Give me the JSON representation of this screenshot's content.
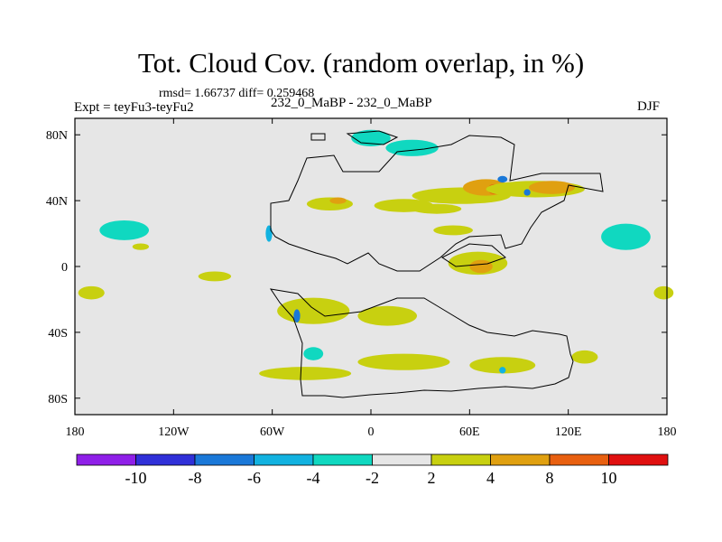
{
  "header": {
    "title": "Tot. Cloud Cov. (random overlap, in %)",
    "stats": "rmsd= 1.66737  diff= 0.259468",
    "experiment": "Expt = teyFu3-teyFu2",
    "period": "232_0_MaBP - 232_0_MaBP",
    "season": "DJF"
  },
  "chart_data": {
    "type": "heatmap",
    "title": "Tot. Cloud Cov. (random overlap, in %)",
    "subtitle": "232_0_MaBP - 232_0_MaBP",
    "units": "%",
    "x_range": [
      -180,
      180
    ],
    "y_range": [
      -90,
      90
    ],
    "x_ticks": [
      {
        "value": -180,
        "label": "180"
      },
      {
        "value": -120,
        "label": "120W"
      },
      {
        "value": -60,
        "label": "60W"
      },
      {
        "value": 0,
        "label": "0"
      },
      {
        "value": 60,
        "label": "60E"
      },
      {
        "value": 120,
        "label": "120E"
      },
      {
        "value": 180,
        "label": "180"
      }
    ],
    "y_ticks": [
      {
        "value": 80,
        "label": "80N"
      },
      {
        "value": 40,
        "label": "40N"
      },
      {
        "value": 0,
        "label": "0"
      },
      {
        "value": -40,
        "label": "40S"
      },
      {
        "value": -80,
        "label": "80S"
      }
    ],
    "colorbar": {
      "colors": [
        "#8f1fe8",
        "#3030d8",
        "#1a78d8",
        "#12b2e0",
        "#10d8c0",
        "#e6e6e6",
        "#c8d010",
        "#e0a010",
        "#e86010",
        "#e01010"
      ],
      "labels": [
        {
          "index": 1,
          "label": "-10"
        },
        {
          "index": 2,
          "label": "-8"
        },
        {
          "index": 3,
          "label": "-6"
        },
        {
          "index": 4,
          "label": "-4"
        },
        {
          "index": 5,
          "label": "-2"
        },
        {
          "index": 6,
          "label": "2"
        },
        {
          "index": 7,
          "label": "4"
        },
        {
          "index": 8,
          "label": "8"
        },
        {
          "index": 9,
          "label": "10"
        }
      ]
    },
    "anomalies": [
      {
        "lon": -150,
        "lat": 22,
        "rx": 15,
        "ry": 6,
        "level": 4
      },
      {
        "lon": -140,
        "lat": 12,
        "rx": 5,
        "ry": 2,
        "level": 6
      },
      {
        "lon": -170,
        "lat": -16,
        "rx": 8,
        "ry": 4,
        "level": 6
      },
      {
        "lon": -95,
        "lat": -6,
        "rx": 10,
        "ry": 3,
        "level": 6
      },
      {
        "lon": -35,
        "lat": -27,
        "rx": 22,
        "ry": 8,
        "level": 6
      },
      {
        "lon": 10,
        "lat": -30,
        "rx": 18,
        "ry": 6,
        "level": 6
      },
      {
        "lon": -25,
        "lat": 38,
        "rx": 14,
        "ry": 4,
        "level": 6
      },
      {
        "lon": -20,
        "lat": 40,
        "rx": 5,
        "ry": 2,
        "level": 7
      },
      {
        "lon": 20,
        "lat": 37,
        "rx": 18,
        "ry": 4,
        "level": 6
      },
      {
        "lon": 55,
        "lat": 43,
        "rx": 30,
        "ry": 5,
        "level": 6
      },
      {
        "lon": 70,
        "lat": 48,
        "rx": 14,
        "ry": 5,
        "level": 7
      },
      {
        "lon": 75,
        "lat": 47,
        "rx": 4,
        "ry": 3,
        "level": 8
      },
      {
        "lon": 100,
        "lat": 47,
        "rx": 30,
        "ry": 5,
        "level": 6
      },
      {
        "lon": 110,
        "lat": 48,
        "rx": 14,
        "ry": 4,
        "level": 7
      },
      {
        "lon": 40,
        "lat": 35,
        "rx": 15,
        "ry": 3,
        "level": 6
      },
      {
        "lon": 50,
        "lat": 22,
        "rx": 12,
        "ry": 3,
        "level": 6
      },
      {
        "lon": 65,
        "lat": 2,
        "rx": 18,
        "ry": 7,
        "level": 6
      },
      {
        "lon": 67,
        "lat": 0,
        "rx": 7,
        "ry": 4,
        "level": 7
      },
      {
        "lon": 155,
        "lat": 18,
        "rx": 15,
        "ry": 8,
        "level": 4
      },
      {
        "lon": 178,
        "lat": -16,
        "rx": 6,
        "ry": 4,
        "level": 6
      },
      {
        "lon": -40,
        "lat": -65,
        "rx": 28,
        "ry": 4,
        "level": 6
      },
      {
        "lon": 20,
        "lat": -58,
        "rx": 28,
        "ry": 5,
        "level": 6
      },
      {
        "lon": 80,
        "lat": -60,
        "rx": 20,
        "ry": 5,
        "level": 6
      },
      {
        "lon": 130,
        "lat": -55,
        "rx": 8,
        "ry": 4,
        "level": 6
      },
      {
        "lon": 0,
        "lat": 78,
        "rx": 12,
        "ry": 5,
        "level": 4
      },
      {
        "lon": 25,
        "lat": 72,
        "rx": 16,
        "ry": 5,
        "level": 4
      },
      {
        "lon": -62,
        "lat": 20,
        "rx": 2,
        "ry": 5,
        "level": 3
      },
      {
        "lon": -45,
        "lat": -30,
        "rx": 2,
        "ry": 4,
        "level": 2
      },
      {
        "lon": 80,
        "lat": 53,
        "rx": 3,
        "ry": 2,
        "level": 2
      },
      {
        "lon": 95,
        "lat": 45,
        "rx": 2,
        "ry": 2,
        "level": 2
      },
      {
        "lon": -35,
        "lat": -53,
        "rx": 6,
        "ry": 4,
        "level": 4
      },
      {
        "lon": 80,
        "lat": -63,
        "rx": 2,
        "ry": 2,
        "level": 3
      }
    ]
  }
}
